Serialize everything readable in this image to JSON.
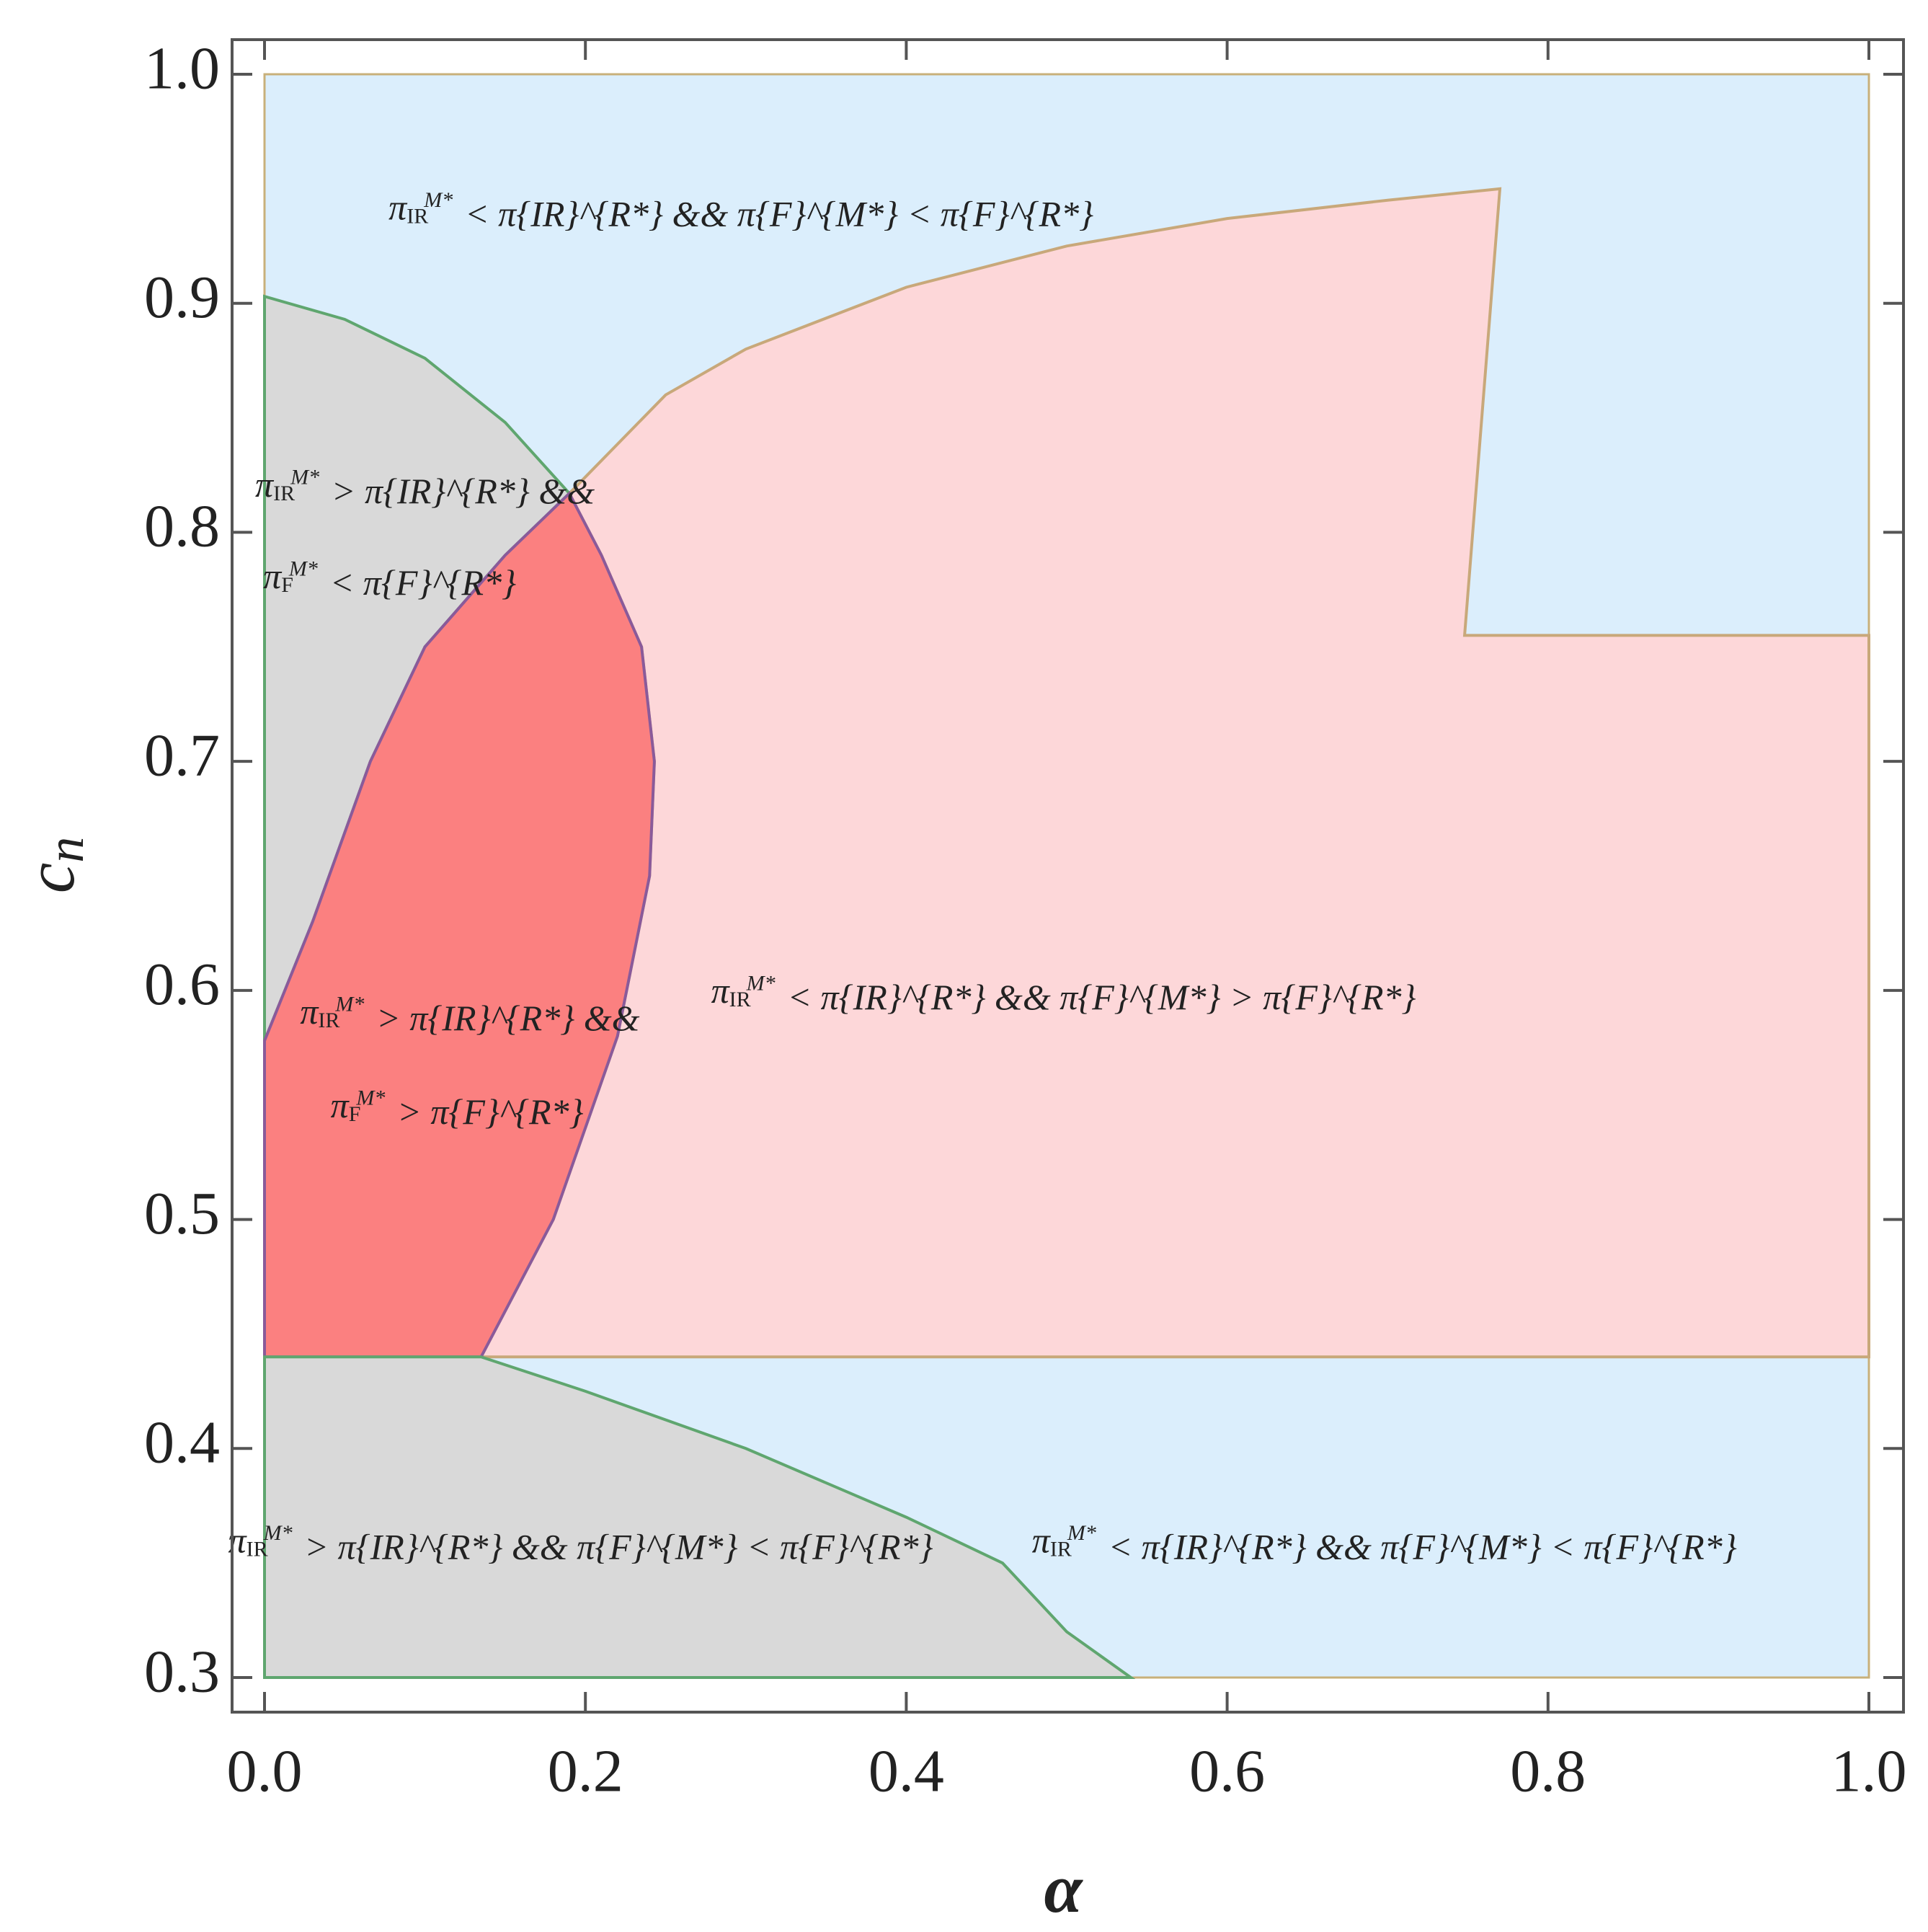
{
  "chart_data": {
    "type": "region",
    "xlabel": "α",
    "ylabel": "c_n",
    "xlim": [
      0,
      1
    ],
    "ylim": [
      0.3,
      1.0
    ],
    "xticks": [
      {
        "value": 0,
        "label": "0.0"
      },
      0.2,
      0.4,
      0.6,
      0.8,
      {
        "value": 1,
        "label": "1.0"
      }
    ],
    "yticks": [
      0.3,
      0.4,
      0.5,
      0.6,
      0.7,
      0.8,
      0.9,
      {
        "value": 1,
        "label": "1.0"
      }
    ],
    "background": "#dbeefc",
    "regions": [
      {
        "color": "#d9d9d9",
        "edge": "#5fa66f",
        "x": [
          0,
          0.05,
          0.1,
          0.15,
          0.19,
          0.15,
          0.1,
          0.066,
          0.03,
          0
        ],
        "y": [
          0.903,
          0.893,
          0.876,
          0.848,
          0.817,
          0.79,
          0.75,
          0.7,
          0.63,
          0.578
        ]
      },
      {
        "color": "#fdd7d9",
        "edge": "#c8a87a",
        "x": [
          0.19,
          0.25,
          0.3,
          0.4,
          0.5,
          0.6,
          0.7,
          0.77,
          0.748,
          1,
          1,
          0.135,
          0.18,
          0.22,
          0.24,
          0.243,
          0.235,
          0.21
        ],
        "y": [
          0.817,
          0.86,
          0.88,
          0.907,
          0.925,
          0.937,
          0.945,
          0.95,
          0.755,
          0.755,
          0.44,
          0.44,
          0.5,
          0.58,
          0.65,
          0.7,
          0.75,
          0.79
        ]
      },
      {
        "color": "#fb8080",
        "edge": "#8a5a9a",
        "x": [
          0,
          0.135,
          0.18,
          0.22,
          0.24,
          0.243,
          0.235,
          0.21,
          0.19,
          0.15,
          0.1,
          0.066,
          0.03,
          0
        ],
        "y": [
          0.44,
          0.44,
          0.5,
          0.58,
          0.65,
          0.7,
          0.75,
          0.79,
          0.817,
          0.79,
          0.75,
          0.7,
          0.63,
          0.578
        ]
      },
      {
        "color": "#d9d9d9",
        "edge": "#5fa66f",
        "x": [
          0,
          0,
          0.135,
          0.2,
          0.3,
          0.4,
          0.46,
          0.5,
          0.54
        ],
        "y": [
          0.3,
          0.44,
          0.44,
          0.425,
          0.4,
          0.37,
          0.35,
          0.32,
          0.3
        ]
      }
    ],
    "annotations": [
      "π_{IR}^{M*} < π_{IR}^{R*} && π_{F}^{M*} < π_{F}^{R*}",
      "π_{IR}^{M*} > π_{IR}^{R*} &&",
      "π_{F}^{M*} < π_{F}^{R*}",
      "π_{IR}^{M*} > π_{IR}^{R*} &&",
      "π_{F}^{M*} > π_{F}^{R*}",
      "π_{IR}^{M*} < π_{IR}^{R*} && π_{F}^{M*} > π_{F}^{R*}",
      "π_{IR}^{M*} > π_{IR}^{R*} && π_{F}^{M*} < π_{F}^{R*}",
      "π_{IR}^{M*} < π_{IR}^{R*} && π_{F}^{M*} < π_{F}^{R*}"
    ]
  }
}
